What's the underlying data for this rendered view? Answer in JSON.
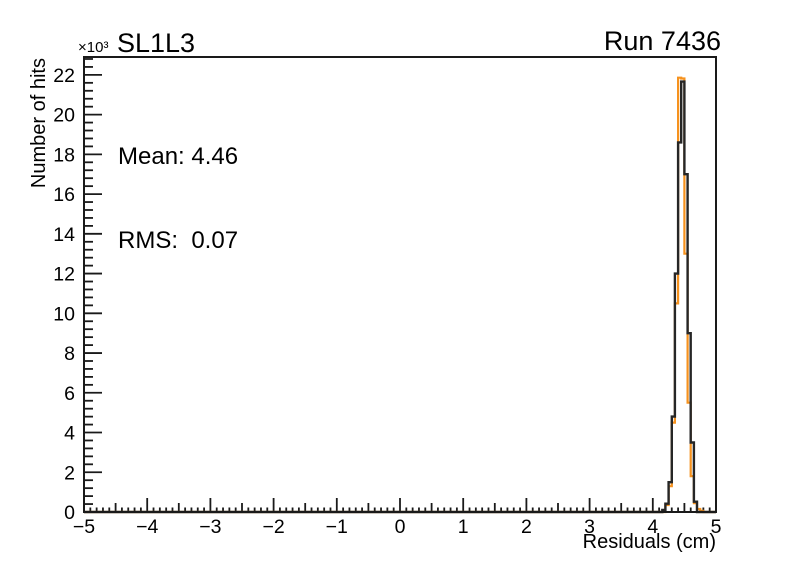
{
  "window": {
    "background_color": "#ffffff"
  },
  "header": {
    "y_axis_exponent": "×10³",
    "title": "SL1L3",
    "run_label": "Run 7436"
  },
  "stats_box": {
    "mean_line": "Mean: 4.46",
    "rms_line": "RMS:  0.07"
  },
  "axes": {
    "x_title": "Residuals (cm)",
    "y_title": "Number of hits"
  },
  "colors": {
    "axis": "#1a1a1a",
    "text": "#000000",
    "black_histogram": "#262626",
    "orange_histogram": "#f6921e"
  },
  "chart_data": {
    "type": "bar",
    "variant": "step-histogram-outline",
    "title": "SL1L3",
    "annotation_top_right": "Run 7436",
    "xlabel": "Residuals (cm)",
    "ylabel": "Number of hits",
    "y_scale_factor_label": "×10³",
    "stats": {
      "mean": 4.46,
      "rms": 0.07
    },
    "xlim": [
      -5,
      5
    ],
    "ylim": [
      0,
      22900
    ],
    "grid": false,
    "legend": false,
    "x_major_tick_step": 1,
    "x_medium_tick_step": 0.5,
    "x_minor_tick_step": 0.1,
    "y_major_tick_step": 2000,
    "y_minor_tick_step": 400,
    "x_tick_labels": [
      "−5",
      "−4",
      "−3",
      "−2",
      "−1",
      "0",
      "1",
      "2",
      "3",
      "4",
      "5"
    ],
    "y_tick_labels": [
      "0",
      "2",
      "4",
      "6",
      "8",
      "10",
      "12",
      "14",
      "16",
      "18",
      "20",
      "22"
    ],
    "bin_width": 0.05,
    "series": [
      {
        "name": "black-histogram",
        "color": "#262626",
        "line_width": 2.4,
        "bin_start": 4.15,
        "values": [
          100,
          420,
          1500,
          4800,
          12000,
          18600,
          21660,
          17000,
          9000,
          3500,
          520
        ]
      },
      {
        "name": "orange-histogram",
        "color": "#f6921e",
        "line_width": 2.2,
        "bin_start": 4.2,
        "values": [
          350,
          1300,
          4500,
          10500,
          21860,
          21820,
          13000,
          5500,
          1800,
          450,
          150,
          60
        ]
      }
    ],
    "annotations": [
      "Mean: 4.46",
      "RMS:  0.07"
    ]
  }
}
